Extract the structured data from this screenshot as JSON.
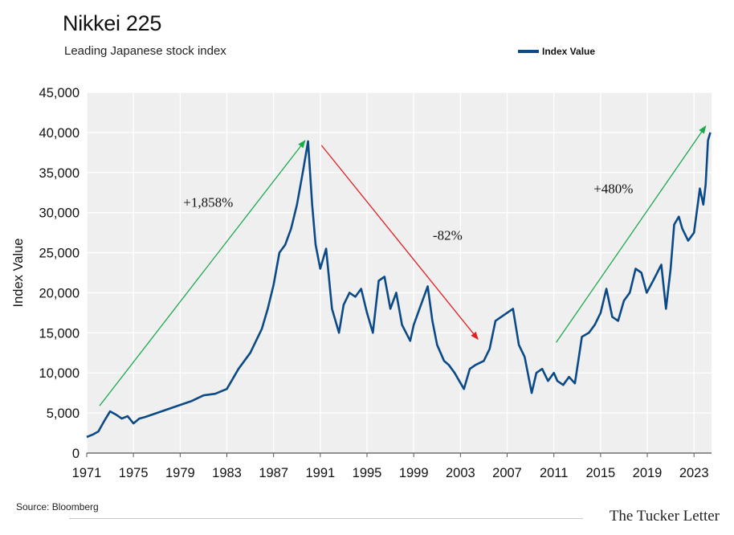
{
  "colors": {
    "series": "#0b4a86",
    "plot_background": "#efefef",
    "grid": "#ffffff",
    "up_arrow": "#1aaa4e",
    "down_arrow": "#e02020"
  },
  "footer": {
    "source": "Source: Bloomberg",
    "brand": "The Tucker Letter"
  },
  "chart_data": {
    "type": "line",
    "title": "Nikkei 225",
    "subtitle": "Leading Japanese stock index",
    "xlabel": "",
    "ylabel": "Index Value",
    "xlim": [
      1971,
      2024.5
    ],
    "ylim": [
      0,
      45000
    ],
    "x_ticks": [
      1971,
      1975,
      1979,
      1983,
      1987,
      1991,
      1995,
      1999,
      2003,
      2007,
      2011,
      2015,
      2019,
      2023
    ],
    "x_tick_labels": [
      "1971",
      "1975",
      "1979",
      "1983",
      "1987",
      "1991",
      "1995",
      "1999",
      "2003",
      "2007",
      "2011",
      "2015",
      "2019",
      "2023"
    ],
    "y_ticks": [
      0,
      5000,
      10000,
      15000,
      20000,
      25000,
      30000,
      35000,
      40000,
      45000
    ],
    "y_tick_labels": [
      "0",
      "5,000",
      "10,000",
      "15,000",
      "20,000",
      "25,000",
      "30,000",
      "35,000",
      "40,000",
      "45,000"
    ],
    "grid": true,
    "legend": "top-right",
    "series": [
      {
        "name": "Index Value",
        "x": [
          1971.0,
          1971.5,
          1972.0,
          1972.5,
          1973.0,
          1973.5,
          1974.0,
          1974.5,
          1975.0,
          1975.5,
          1976.0,
          1977.0,
          1978.0,
          1979.0,
          1980.0,
          1981.0,
          1982.0,
          1982.5,
          1983.0,
          1984.0,
          1985.0,
          1986.0,
          1986.5,
          1987.0,
          1987.5,
          1988.0,
          1988.5,
          1989.0,
          1989.5,
          1989.95,
          1990.3,
          1990.6,
          1991.0,
          1991.5,
          1992.0,
          1992.6,
          1993.0,
          1993.5,
          1994.0,
          1994.5,
          1995.0,
          1995.5,
          1996.0,
          1996.5,
          1997.0,
          1997.5,
          1998.0,
          1998.7,
          1999.0,
          1999.5,
          2000.2,
          2000.6,
          2001.0,
          2001.6,
          2002.0,
          2002.5,
          2003.3,
          2003.8,
          2004.3,
          2005.0,
          2005.5,
          2006.0,
          2006.5,
          2007.0,
          2007.5,
          2008.0,
          2008.5,
          2009.1,
          2009.5,
          2010.0,
          2010.5,
          2011.0,
          2011.3,
          2011.8,
          2012.3,
          2012.8,
          2013.4,
          2014.0,
          2014.5,
          2015.0,
          2015.5,
          2016.0,
          2016.5,
          2017.0,
          2017.5,
          2018.0,
          2018.5,
          2018.95,
          2019.5,
          2020.2,
          2020.6,
          2021.0,
          2021.3,
          2021.7,
          2022.0,
          2022.5,
          2023.0,
          2023.5,
          2023.8,
          2024.0,
          2024.2,
          2024.4
        ],
        "values": [
          2000,
          2300,
          2700,
          4000,
          5200,
          4800,
          4300,
          4600,
          3700,
          4300,
          4500,
          5000,
          5500,
          6000,
          6500,
          7200,
          7400,
          7700,
          8000,
          10500,
          12500,
          15500,
          18000,
          21000,
          25000,
          26000,
          28000,
          31000,
          35000,
          38900,
          31000,
          26000,
          23000,
          25500,
          18000,
          15000,
          18500,
          20000,
          19500,
          20500,
          17500,
          15000,
          21500,
          22000,
          18000,
          20000,
          16000,
          14000,
          16000,
          18000,
          20800,
          16500,
          13500,
          11500,
          11000,
          10000,
          8000,
          10500,
          11000,
          11500,
          13000,
          16500,
          17000,
          17500,
          18000,
          13500,
          12000,
          7500,
          10000,
          10500,
          9000,
          10000,
          9000,
          8500,
          9500,
          8700,
          14500,
          15000,
          16000,
          17500,
          20500,
          17000,
          16500,
          19000,
          20000,
          23000,
          22500,
          20000,
          21500,
          23500,
          18000,
          23000,
          28500,
          29500,
          28000,
          26500,
          27500,
          33000,
          31000,
          33500,
          39000,
          40000
        ]
      }
    ],
    "annotations": [
      {
        "text": "+1,858%",
        "x": 1981.4,
        "y": 30700,
        "color": "#111111"
      },
      {
        "text": "-82%",
        "x": 2001.9,
        "y": 26600,
        "color": "#111111"
      },
      {
        "text": "+480%",
        "x": 2016.1,
        "y": 32400,
        "color": "#111111"
      }
    ],
    "arrows": [
      {
        "from": [
          1972.1,
          5900
        ],
        "to": [
          1989.7,
          39000
        ],
        "direction": "up",
        "color": "#1aaa4e"
      },
      {
        "from": [
          1991.1,
          38400
        ],
        "to": [
          2004.5,
          14200
        ],
        "direction": "down",
        "color": "#e02020"
      },
      {
        "from": [
          2011.2,
          13800
        ],
        "to": [
          2024.0,
          40800
        ],
        "direction": "up",
        "color": "#1aaa4e"
      }
    ]
  }
}
